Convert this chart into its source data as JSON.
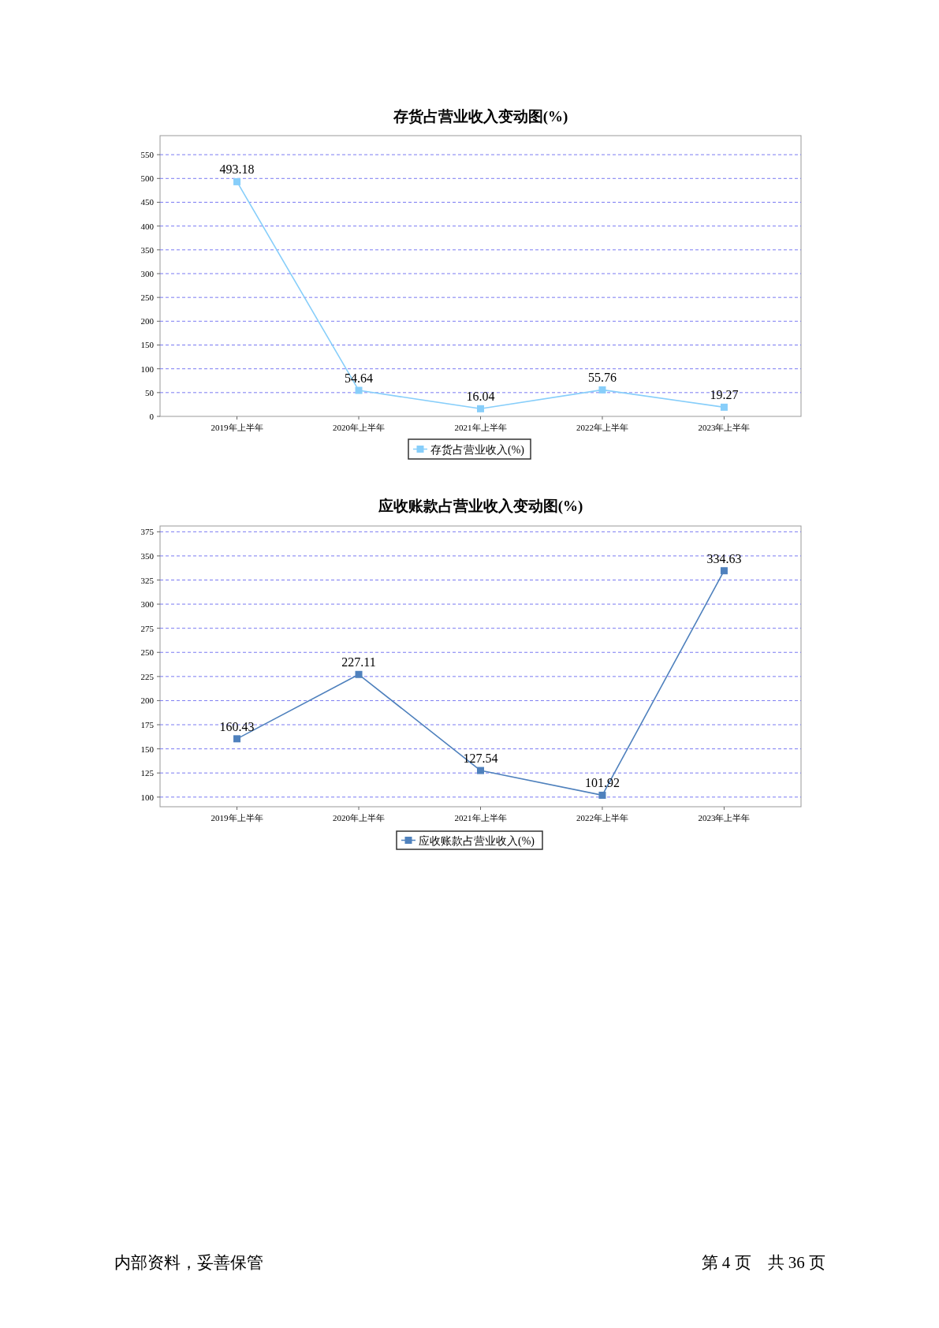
{
  "chart_data": [
    {
      "type": "line",
      "title": "存货占营业收入变动图(%)",
      "categories": [
        "2019年上半年",
        "2020年上半年",
        "2021年上半年",
        "2022年上半年",
        "2023年上半年"
      ],
      "series": [
        {
          "name": "存货占营业收入(%)",
          "color": "#87cefa",
          "values": [
            493.18,
            54.64,
            16.04,
            55.76,
            19.27
          ]
        }
      ],
      "ylim": [
        0,
        590
      ],
      "yticks": [
        0,
        50,
        100,
        150,
        200,
        250,
        300,
        350,
        400,
        450,
        500,
        550
      ],
      "grid": "y",
      "legend": "bottom",
      "marker": "square",
      "data_labels": true
    },
    {
      "type": "line",
      "title": "应收账款占营业收入变动图(%)",
      "categories": [
        "2019年上半年",
        "2020年上半年",
        "2021年上半年",
        "2022年上半年",
        "2023年上半年"
      ],
      "series": [
        {
          "name": "应收账款占营业收入(%)",
          "color": "#4f81bd",
          "values": [
            160.43,
            227.11,
            127.54,
            101.92,
            334.63
          ]
        }
      ],
      "ylim": [
        90,
        381
      ],
      "yticks": [
        100,
        125,
        150,
        175,
        200,
        225,
        250,
        275,
        300,
        325,
        350,
        375
      ],
      "grid": "y",
      "legend": "bottom",
      "marker": "square",
      "data_labels": true,
      "annotations": [
        "内部资料，妥善保管",
        "第 4 页　共 36 页"
      ]
    }
  ]
}
